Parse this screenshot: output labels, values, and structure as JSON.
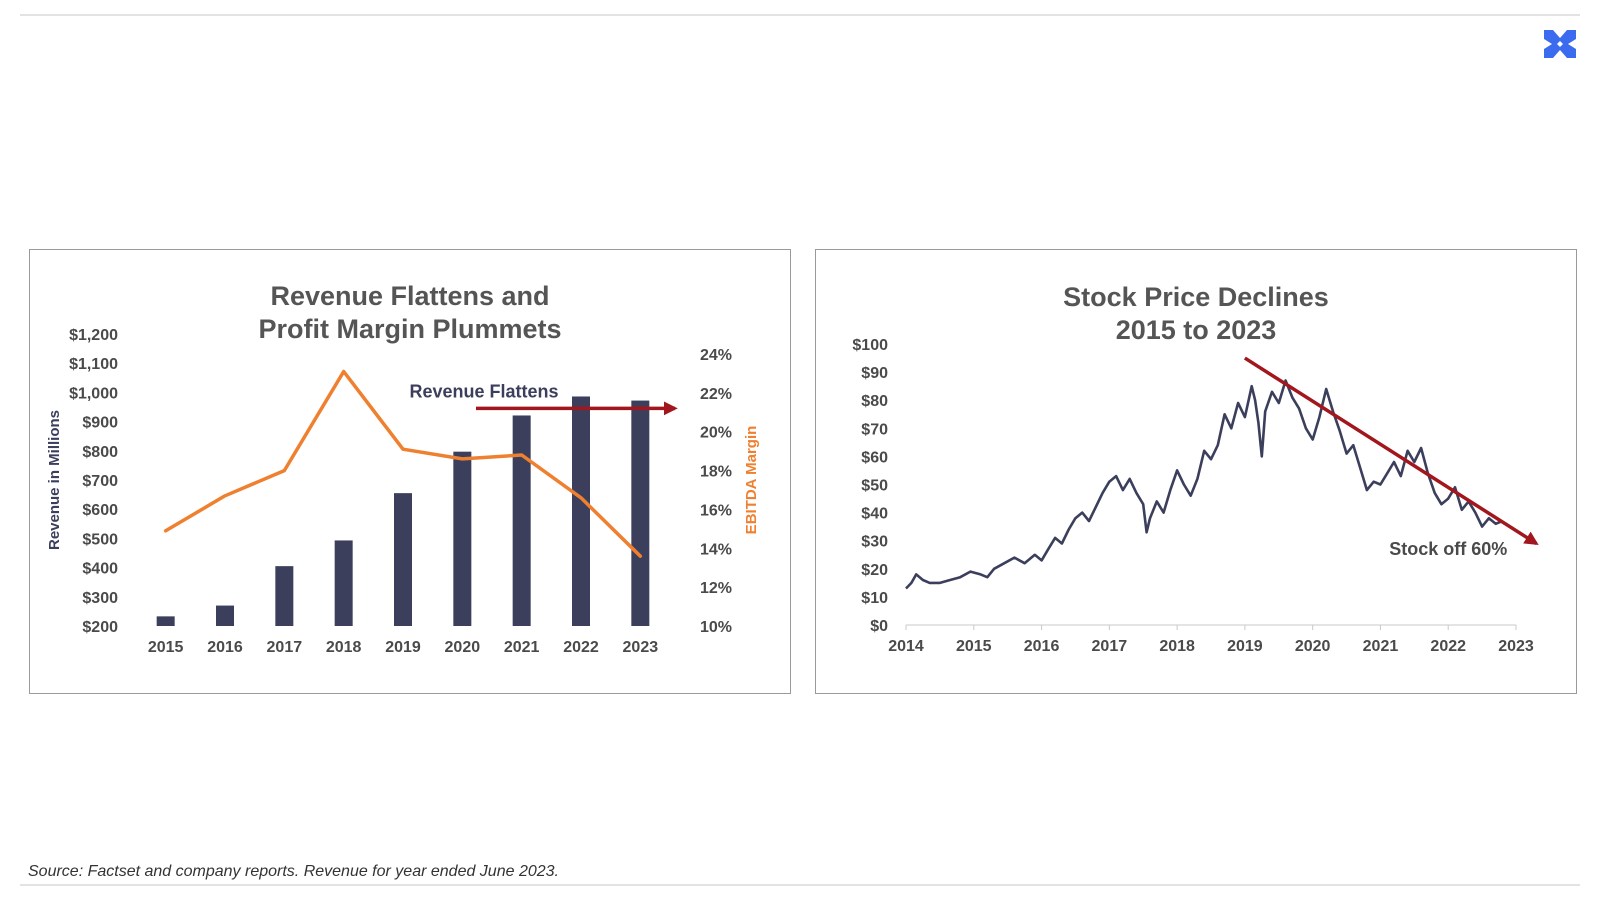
{
  "logo_icon": "x-cross-icon",
  "colors": {
    "navy": "#3b3f5c",
    "orange": "#ee8030",
    "red": "#a2171d",
    "title": "#555555",
    "brand": "#3b6cf0"
  },
  "source_note": "Source: Factset and company reports. Revenue for year ended June 2023.",
  "chart_data": [
    {
      "type": "bar",
      "title_lines": [
        "Revenue Flattens and",
        "Profit Margin Plummets"
      ],
      "categories": [
        "2015",
        "2016",
        "2017",
        "2018",
        "2019",
        "2020",
        "2021",
        "2022",
        "2023"
      ],
      "ylabel": "Revenue in Millions",
      "ylabel_right": "EBITDA Margin",
      "ylim": [
        200,
        1200
      ],
      "y_ticks": [
        "$200",
        "$300",
        "$400",
        "$500",
        "$600",
        "$700",
        "$800",
        "$900",
        "$1,000",
        "$1,100",
        "$1,200"
      ],
      "ylim_right": [
        10,
        24
      ],
      "y2_ticks": [
        "10%",
        "12%",
        "14%",
        "16%",
        "18%",
        "20%",
        "22%",
        "24%"
      ],
      "series": [
        {
          "name": "Revenue",
          "type": "bar",
          "values": [
            233,
            270,
            405,
            493,
            655,
            797,
            921,
            986,
            972
          ]
        },
        {
          "name": "EBITDA Margin",
          "type": "line",
          "axis": "right",
          "values": [
            14.9,
            16.7,
            18.0,
            23.1,
            19.1,
            18.6,
            18.8,
            16.6,
            13.6
          ]
        }
      ],
      "annotations": [
        {
          "text": "Revenue Flattens",
          "level": 21.2
        }
      ]
    },
    {
      "type": "line",
      "title_lines": [
        "Stock Price Declines",
        "2015 to 2023"
      ],
      "x_ticks": [
        "2014",
        "2015",
        "2016",
        "2017",
        "2018",
        "2019",
        "2020",
        "2021",
        "2022",
        "2023"
      ],
      "y_ticks": [
        "$0",
        "$10",
        "$20",
        "$30",
        "$40",
        "$50",
        "$60",
        "$70",
        "$80",
        "$90",
        "$100"
      ],
      "xlim": [
        2014,
        2023
      ],
      "ylim": [
        0,
        100
      ],
      "series": [
        {
          "name": "Stock Price",
          "points": [
            [
              2014.0,
              13
            ],
            [
              2014.08,
              15
            ],
            [
              2014.15,
              18
            ],
            [
              2014.25,
              16
            ],
            [
              2014.35,
              15
            ],
            [
              2014.5,
              15
            ],
            [
              2014.65,
              16
            ],
            [
              2014.8,
              17
            ],
            [
              2014.95,
              19
            ],
            [
              2015.1,
              18
            ],
            [
              2015.2,
              17
            ],
            [
              2015.3,
              20
            ],
            [
              2015.45,
              22
            ],
            [
              2015.6,
              24
            ],
            [
              2015.75,
              22
            ],
            [
              2015.9,
              25
            ],
            [
              2016.0,
              23
            ],
            [
              2016.1,
              27
            ],
            [
              2016.2,
              31
            ],
            [
              2016.3,
              29
            ],
            [
              2016.4,
              34
            ],
            [
              2016.5,
              38
            ],
            [
              2016.6,
              40
            ],
            [
              2016.7,
              37
            ],
            [
              2016.8,
              42
            ],
            [
              2016.9,
              47
            ],
            [
              2017.0,
              51
            ],
            [
              2017.1,
              53
            ],
            [
              2017.2,
              48
            ],
            [
              2017.3,
              52
            ],
            [
              2017.4,
              47
            ],
            [
              2017.5,
              43
            ],
            [
              2017.55,
              33
            ],
            [
              2017.6,
              38
            ],
            [
              2017.7,
              44
            ],
            [
              2017.8,
              40
            ],
            [
              2017.9,
              48
            ],
            [
              2018.0,
              55
            ],
            [
              2018.1,
              50
            ],
            [
              2018.2,
              46
            ],
            [
              2018.3,
              52
            ],
            [
              2018.4,
              62
            ],
            [
              2018.5,
              59
            ],
            [
              2018.6,
              64
            ],
            [
              2018.7,
              75
            ],
            [
              2018.8,
              70
            ],
            [
              2018.9,
              79
            ],
            [
              2019.0,
              74
            ],
            [
              2019.1,
              85
            ],
            [
              2019.15,
              80
            ],
            [
              2019.2,
              72
            ],
            [
              2019.25,
              60
            ],
            [
              2019.3,
              76
            ],
            [
              2019.4,
              83
            ],
            [
              2019.5,
              79
            ],
            [
              2019.6,
              87
            ],
            [
              2019.7,
              81
            ],
            [
              2019.8,
              77
            ],
            [
              2019.9,
              70
            ],
            [
              2020.0,
              66
            ],
            [
              2020.1,
              74
            ],
            [
              2020.2,
              84
            ],
            [
              2020.3,
              76
            ],
            [
              2020.4,
              69
            ],
            [
              2020.5,
              61
            ],
            [
              2020.6,
              64
            ],
            [
              2020.7,
              56
            ],
            [
              2020.8,
              48
            ],
            [
              2020.9,
              51
            ],
            [
              2021.0,
              50
            ],
            [
              2021.1,
              54
            ],
            [
              2021.2,
              58
            ],
            [
              2021.3,
              53
            ],
            [
              2021.4,
              62
            ],
            [
              2021.5,
              58
            ],
            [
              2021.6,
              63
            ],
            [
              2021.7,
              54
            ],
            [
              2021.8,
              47
            ],
            [
              2021.9,
              43
            ],
            [
              2022.0,
              45
            ],
            [
              2022.1,
              49
            ],
            [
              2022.2,
              41
            ],
            [
              2022.3,
              44
            ],
            [
              2022.4,
              40
            ],
            [
              2022.5,
              35
            ],
            [
              2022.6,
              38
            ],
            [
              2022.7,
              36
            ],
            [
              2022.8,
              37
            ]
          ]
        }
      ],
      "trend_line": {
        "from": [
          2019.0,
          95
        ],
        "to": [
          2023.3,
          29
        ]
      },
      "annotations": [
        {
          "text": "Stock off 60%",
          "x": 2022.0,
          "y": 27
        }
      ]
    }
  ]
}
